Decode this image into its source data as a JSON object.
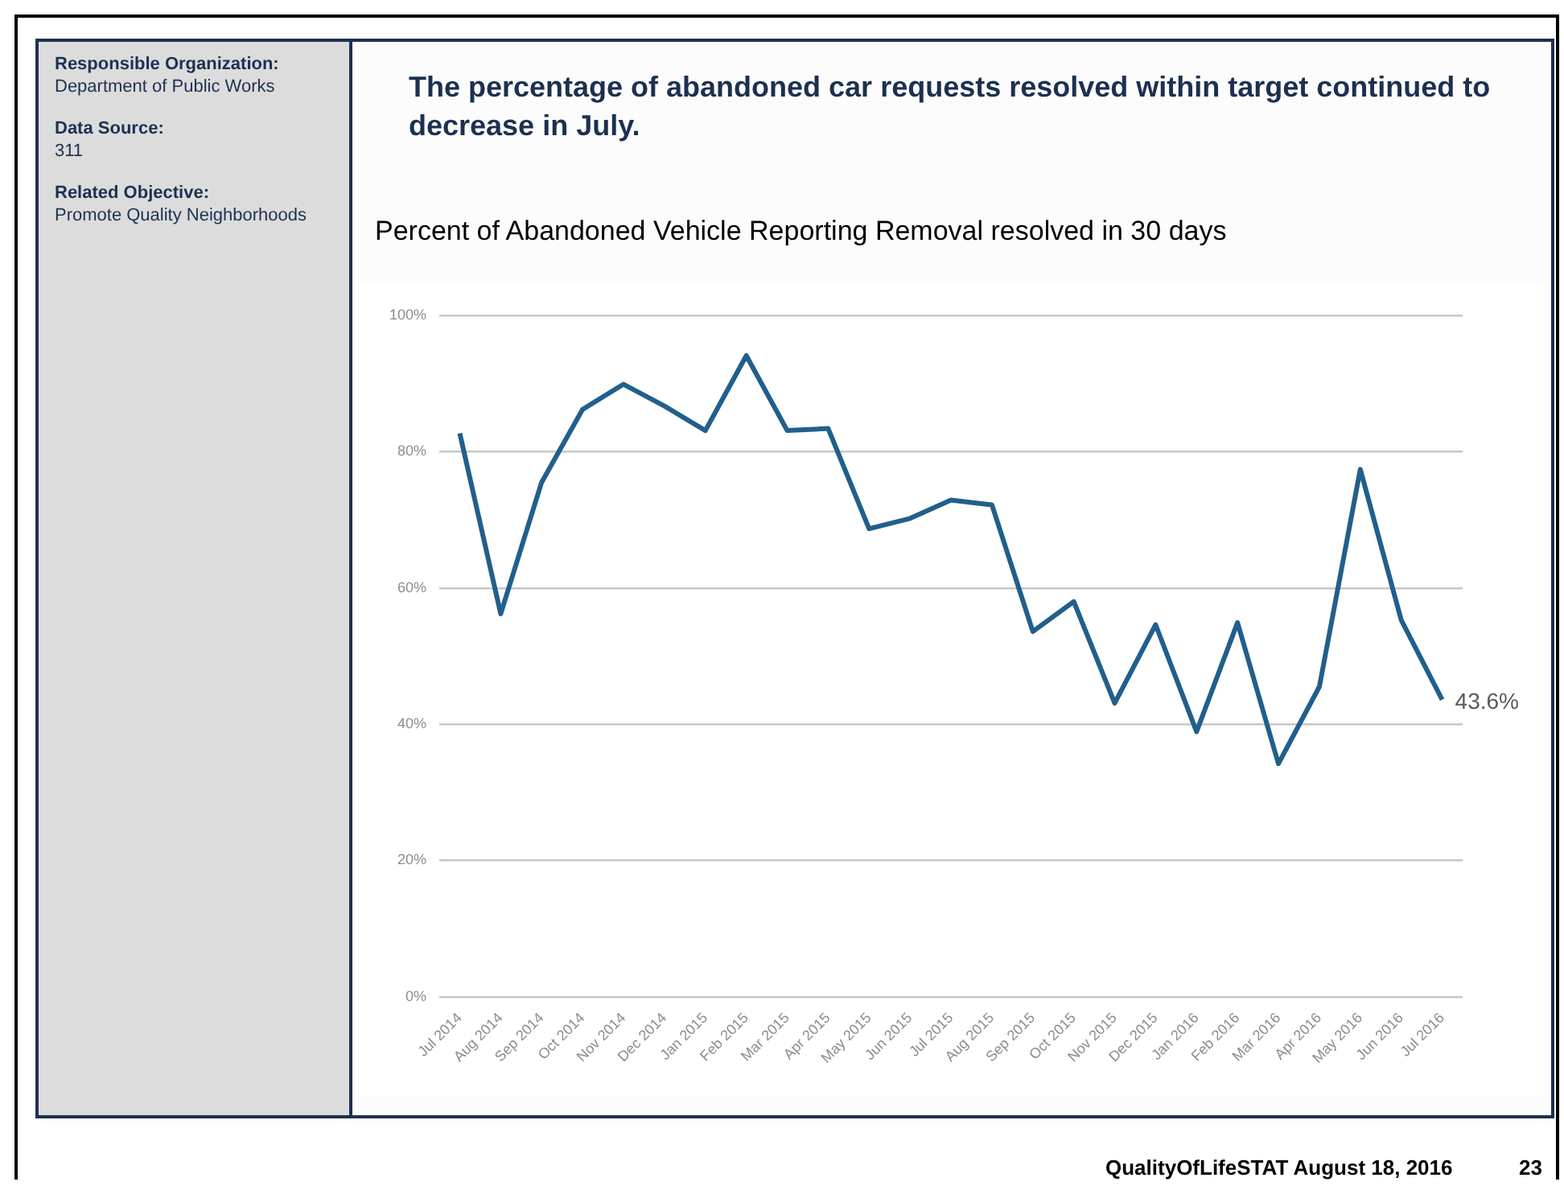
{
  "chart_data": {
    "type": "line",
    "title": "The percentage of abandoned car requests resolved within target continued to decrease in July.",
    "subtitle": "Percent of Abandoned Vehicle Reporting Removal resolved in 30 days",
    "categories": [
      "Jul 2014",
      "Aug 2014",
      "Sep 2014",
      "Oct 2014",
      "Nov 2014",
      "Dec 2014",
      "Jan 2015",
      "Feb 2015",
      "Mar 2015",
      "Apr 2015",
      "May 2015",
      "Jun 2015",
      "Jul 2015",
      "Aug 2015",
      "Sep 2015",
      "Oct 2015",
      "Nov 2015",
      "Dec 2015",
      "Jan 2016",
      "Feb 2016",
      "Mar 2016",
      "Apr 2016",
      "May 2016",
      "Jun 2016",
      "Jul 2016"
    ],
    "series": [
      {
        "color": "#215f8c",
        "values": [
          82.7,
          56.2,
          75.5,
          86.2,
          89.9,
          86.7,
          83.1,
          94.1,
          83.1,
          83.4,
          68.7,
          70.2,
          72.9,
          72.2,
          53.6,
          58.0,
          43.1,
          54.6,
          38.9,
          54.9,
          34.2,
          45.5,
          77.4,
          55.3,
          43.6
        ],
        "value_labels": [
          null,
          null,
          null,
          null,
          null,
          null,
          null,
          null,
          null,
          null,
          null,
          null,
          null,
          null,
          null,
          null,
          null,
          null,
          null,
          null,
          null,
          null,
          null,
          null,
          "43.6%"
        ]
      }
    ],
    "ylim": [
      0,
      100
    ],
    "yticks": [
      {
        "value": 0,
        "label": "0%"
      },
      {
        "value": 20,
        "label": "20%"
      },
      {
        "value": 40,
        "label": "40%"
      },
      {
        "value": 60,
        "label": "60%"
      },
      {
        "value": 80,
        "label": "80%"
      },
      {
        "value": 100,
        "label": "100%"
      }
    ],
    "grid": "y",
    "legend": false,
    "marker": "none",
    "line_style": "solid",
    "annotations": [
      "Responsible Organization:",
      "Department of Public Works",
      "Data Source:",
      "311",
      "Related Objective:",
      "Promote Quality Neighborhoods",
      "QualityOfLifeSTAT August 18, 2016",
      "23"
    ]
  }
}
